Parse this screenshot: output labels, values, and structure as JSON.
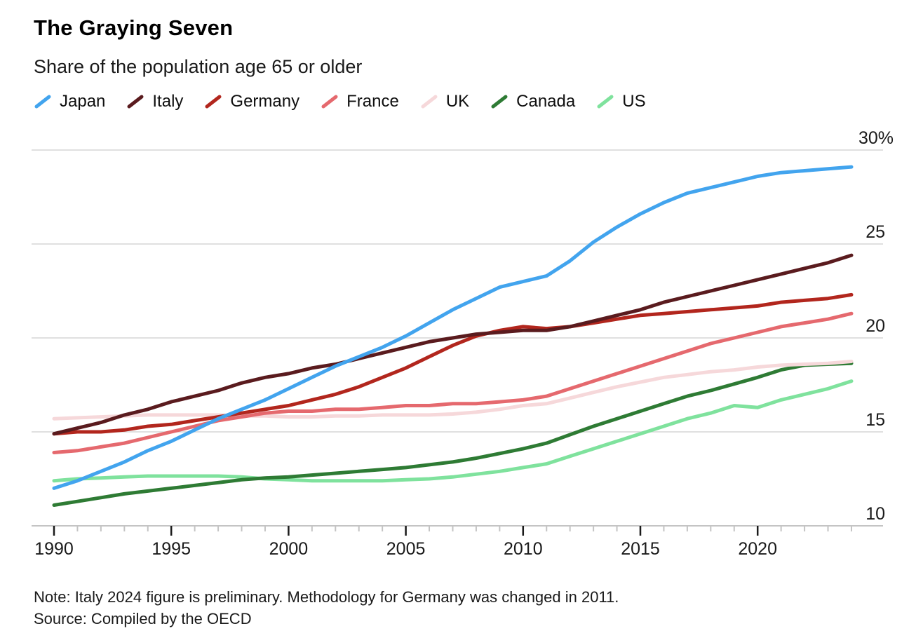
{
  "header": {
    "title": "The Graying Seven",
    "subtitle": "Share of the population age 65 or older"
  },
  "legend": {
    "items": [
      {
        "label": "Japan",
        "color": "#42A4EE"
      },
      {
        "label": "Italy",
        "color": "#5A1B1E"
      },
      {
        "label": "Germany",
        "color": "#B2261D"
      },
      {
        "label": "France",
        "color": "#E5696E"
      },
      {
        "label": "UK",
        "color": "#F6D8DA"
      },
      {
        "label": "Canada",
        "color": "#2E7B34"
      },
      {
        "label": "US",
        "color": "#7FE29D"
      }
    ]
  },
  "chart_data": {
    "type": "line",
    "title": "The Graying Seven",
    "subtitle": "Share of the population age 65 or older",
    "x": [
      1990,
      1991,
      1992,
      1993,
      1994,
      1995,
      1996,
      1997,
      1998,
      1999,
      2000,
      2001,
      2002,
      2003,
      2004,
      2005,
      2006,
      2007,
      2008,
      2009,
      2010,
      2011,
      2012,
      2013,
      2014,
      2015,
      2016,
      2017,
      2018,
      2019,
      2020,
      2021,
      2022,
      2023,
      2024
    ],
    "series": [
      {
        "name": "Japan",
        "color": "#42A4EE",
        "values": [
          12.0,
          12.4,
          12.9,
          13.4,
          14.0,
          14.5,
          15.1,
          15.7,
          16.2,
          16.7,
          17.3,
          17.9,
          18.5,
          19.0,
          19.5,
          20.1,
          20.8,
          21.5,
          22.1,
          22.7,
          23.0,
          23.3,
          24.1,
          25.1,
          25.9,
          26.6,
          27.2,
          27.7,
          28.0,
          28.3,
          28.6,
          28.8,
          28.9,
          29.0,
          29.1
        ]
      },
      {
        "name": "Italy",
        "color": "#5A1B1E",
        "values": [
          14.9,
          15.2,
          15.5,
          15.9,
          16.2,
          16.6,
          16.9,
          17.2,
          17.6,
          17.9,
          18.1,
          18.4,
          18.6,
          18.9,
          19.2,
          19.5,
          19.8,
          20.0,
          20.2,
          20.3,
          20.4,
          20.4,
          20.6,
          20.9,
          21.2,
          21.5,
          21.9,
          22.2,
          22.5,
          22.8,
          23.1,
          23.4,
          23.7,
          24.0,
          24.4
        ]
      },
      {
        "name": "Germany",
        "color": "#B2261D",
        "values": [
          14.9,
          15.0,
          15.0,
          15.1,
          15.3,
          15.4,
          15.6,
          15.8,
          16.0,
          16.2,
          16.4,
          16.7,
          17.0,
          17.4,
          17.9,
          18.4,
          19.0,
          19.6,
          20.1,
          20.4,
          20.6,
          20.5,
          20.6,
          20.8,
          21.0,
          21.2,
          21.3,
          21.4,
          21.5,
          21.6,
          21.7,
          21.9,
          22.0,
          22.1,
          22.3
        ]
      },
      {
        "name": "France",
        "color": "#E5696E",
        "values": [
          13.9,
          14.0,
          14.2,
          14.4,
          14.7,
          15.0,
          15.3,
          15.6,
          15.8,
          16.0,
          16.1,
          16.1,
          16.2,
          16.2,
          16.3,
          16.4,
          16.4,
          16.5,
          16.5,
          16.6,
          16.7,
          16.9,
          17.3,
          17.7,
          18.1,
          18.5,
          18.9,
          19.3,
          19.7,
          20.0,
          20.3,
          20.6,
          20.8,
          21.0,
          21.3
        ]
      },
      {
        "name": "UK",
        "color": "#F6D8DA",
        "values": [
          15.7,
          15.75,
          15.8,
          15.85,
          15.9,
          15.9,
          15.9,
          15.9,
          15.85,
          15.85,
          15.8,
          15.8,
          15.85,
          15.85,
          15.9,
          15.9,
          15.9,
          15.95,
          16.05,
          16.2,
          16.4,
          16.5,
          16.8,
          17.1,
          17.4,
          17.65,
          17.9,
          18.05,
          18.2,
          18.3,
          18.45,
          18.55,
          18.6,
          18.65,
          18.75
        ]
      },
      {
        "name": "Canada",
        "color": "#2E7B34",
        "values": [
          11.1,
          11.3,
          11.5,
          11.7,
          11.85,
          12.0,
          12.15,
          12.3,
          12.45,
          12.55,
          12.6,
          12.7,
          12.8,
          12.9,
          13.0,
          13.1,
          13.25,
          13.4,
          13.6,
          13.85,
          14.1,
          14.4,
          14.85,
          15.3,
          15.7,
          16.1,
          16.5,
          16.9,
          17.2,
          17.55,
          17.9,
          18.3,
          18.55,
          18.6,
          18.65
        ]
      },
      {
        "name": "US",
        "color": "#7FE29D",
        "values": [
          12.4,
          12.5,
          12.55,
          12.6,
          12.65,
          12.65,
          12.65,
          12.65,
          12.6,
          12.5,
          12.45,
          12.4,
          12.4,
          12.4,
          12.4,
          12.45,
          12.5,
          12.6,
          12.75,
          12.9,
          13.1,
          13.3,
          13.7,
          14.1,
          14.5,
          14.9,
          15.3,
          15.7,
          16.0,
          16.4,
          16.3,
          16.7,
          17.0,
          17.3,
          17.7
        ]
      }
    ],
    "xticks": [
      1990,
      1995,
      2000,
      2005,
      2010,
      2015,
      2020
    ],
    "yticks": [
      10,
      15,
      20,
      25,
      30
    ],
    "ytick_labels": [
      "10",
      "15",
      "20",
      "25",
      "30%"
    ],
    "ylim": [
      10,
      30.5
    ],
    "xlim": [
      1990,
      2024
    ],
    "grid": "horizontal",
    "legend_position": "top",
    "style": {
      "gridline_color": "#D6D6D6",
      "axis_color": "#C4C4C4",
      "major_tick_color": "#1A1A1A",
      "minor_tick_color": "#C4C4C4",
      "tick_label_color": "#1A1A1A",
      "line_width": 5
    }
  },
  "footer": {
    "note": "Note: Italy 2024 figure is preliminary. Methodology for Germany was changed in 2011.",
    "source": "Source: Compiled by the OECD"
  }
}
